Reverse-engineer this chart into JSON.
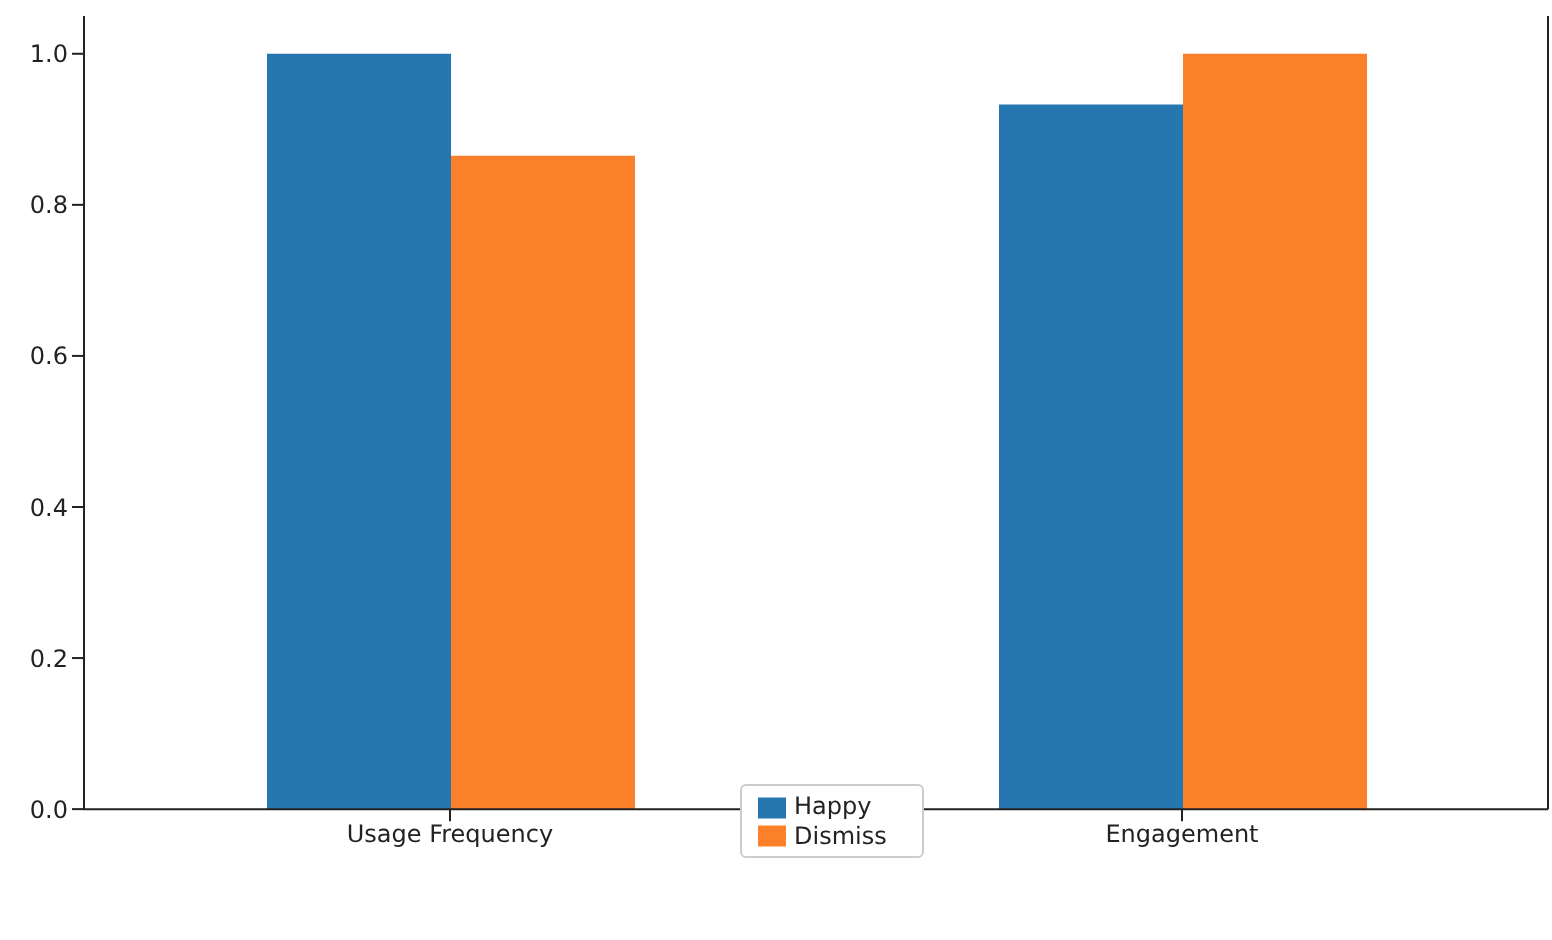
{
  "chart_data": {
    "type": "bar",
    "categories": [
      "Usage Frequency",
      "Engagement"
    ],
    "series": [
      {
        "name": "Happy",
        "color": "#2677b0",
        "values": [
          1.0,
          0.933
        ]
      },
      {
        "name": "Dismiss",
        "color": "#fc7f29",
        "values": [
          0.865,
          1.0
        ]
      }
    ],
    "ylim": [
      0,
      1.05
    ],
    "yticks": [
      {
        "value": 0,
        "label": "0.0"
      },
      {
        "value": 0.2,
        "label": "0.2"
      },
      {
        "value": 0.4,
        "label": "0.4"
      },
      {
        "value": 0.6,
        "label": "0.6"
      },
      {
        "value": 0.8,
        "label": "0.8"
      },
      {
        "value": 1,
        "label": "1.0"
      }
    ],
    "legend": "bottom",
    "grid": false
  }
}
